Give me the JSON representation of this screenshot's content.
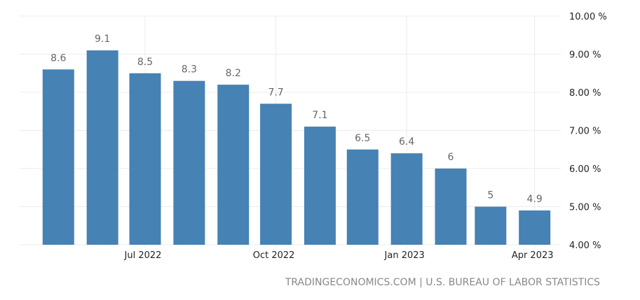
{
  "chart_data": {
    "type": "bar",
    "title": "",
    "xlabel": "",
    "ylabel": "",
    "categories": [
      "2022-05",
      "2022-06",
      "2022-07",
      "2022-08",
      "2022-09",
      "2022-10",
      "2022-11",
      "2022-12",
      "2023-01",
      "2023-02",
      "2023-03",
      "2023-04"
    ],
    "values": [
      8.6,
      9.1,
      8.5,
      8.3,
      8.2,
      7.7,
      7.1,
      6.5,
      6.4,
      6,
      5,
      4.9
    ],
    "data_labels": [
      "8.6",
      "9.1",
      "8.5",
      "8.3",
      "8.2",
      "7.7",
      "7.1",
      "6.5",
      "6.4",
      "6",
      "5",
      "4.9"
    ],
    "ylim": [
      4,
      10
    ],
    "y_ticks": [
      {
        "value": 4,
        "label": "4.00 %"
      },
      {
        "value": 5,
        "label": "5.00 %"
      },
      {
        "value": 6,
        "label": "6.00 %"
      },
      {
        "value": 7,
        "label": "7.00 %"
      },
      {
        "value": 8,
        "label": "8.00 %"
      },
      {
        "value": 9,
        "label": "9.00 %"
      },
      {
        "value": 10,
        "label": "10.00 %"
      }
    ],
    "x_ticks": [
      {
        "date": "2022-07-01",
        "label": "Jul 2022"
      },
      {
        "date": "2022-10-01",
        "label": "Oct 2022"
      },
      {
        "date": "2023-01-01",
        "label": "Jan 2023"
      },
      {
        "date": "2023-04-01",
        "label": "Apr 2023"
      }
    ],
    "y_axis_side": "right",
    "grid": true,
    "bar_color": "#4682b4",
    "source": "TRADINGECONOMICS.COM | U.S. BUREAU OF LABOR STATISTICS"
  }
}
